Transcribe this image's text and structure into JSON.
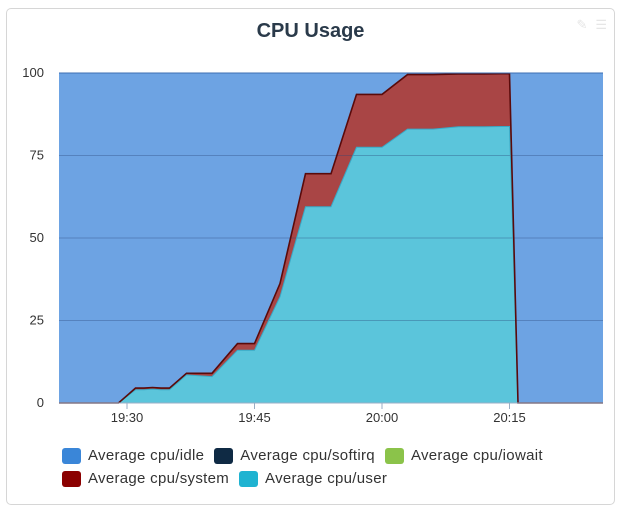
{
  "header": {
    "title": "CPU Usage",
    "icons": [
      "pencil-icon",
      "menu-icon"
    ]
  },
  "chart_data": {
    "type": "area",
    "stacked": true,
    "title": "CPU Usage",
    "xlabel": "",
    "ylabel": "",
    "ylim": [
      0,
      100
    ],
    "xlim": [
      "19:22",
      "20:26"
    ],
    "x_ticks": [
      "19:30",
      "19:45",
      "20:00",
      "20:15"
    ],
    "y_ticks": [
      0,
      25,
      50,
      75,
      100
    ],
    "grid": true,
    "legend_position": "bottom",
    "x": [
      "19:22",
      "19:25",
      "19:26",
      "19:27",
      "19:28",
      "19:29",
      "19:31",
      "19:32",
      "19:33",
      "19:34",
      "19:35",
      "19:37",
      "19:40",
      "19:43",
      "19:45",
      "19:48",
      "19:51",
      "19:54",
      "19:57",
      "20:00",
      "20:03",
      "20:06",
      "20:09",
      "20:12",
      "20:14",
      "20:15",
      "20:16",
      "20:17",
      "20:20",
      "20:23",
      "20:26"
    ],
    "series": [
      {
        "name": "Average cpu/idle",
        "color": "#6da3e3",
        "values": [
          100,
          100,
          100,
          100,
          100,
          100,
          95.5,
          95.5,
          95.3,
          95.5,
          95.5,
          91,
          91,
          82,
          82,
          63.8,
          30.5,
          30.5,
          6.5,
          6.5,
          0.5,
          0.5,
          0.3,
          0.3,
          0.2,
          0.2,
          100,
          100,
          100,
          100,
          100
        ]
      },
      {
        "name": "Average cpu/softirq",
        "color": "#0f2a44",
        "values": [
          0,
          0,
          0,
          0,
          0,
          0,
          0,
          0,
          0,
          0,
          0,
          0,
          0,
          0,
          0,
          0,
          0,
          0,
          0,
          0,
          0,
          0,
          0,
          0,
          0,
          0,
          0,
          0,
          0,
          0,
          0
        ]
      },
      {
        "name": "Average cpu/iowait",
        "color": "#8bc34a",
        "values": [
          0,
          0,
          0,
          0,
          0,
          0,
          0,
          0,
          0,
          0,
          0,
          0,
          0,
          0,
          0,
          0,
          0,
          0,
          0,
          0,
          0,
          0,
          0,
          0,
          0,
          0,
          0,
          0,
          0,
          0,
          0
        ]
      },
      {
        "name": "Average cpu/system",
        "color": "#a94545",
        "values": [
          0,
          0,
          0,
          0,
          0,
          0,
          0.5,
          0.5,
          0.5,
          0.5,
          0.5,
          0.5,
          1,
          2,
          2,
          4,
          10,
          10,
          16,
          16,
          16.5,
          16.5,
          16,
          16,
          16,
          16,
          0,
          0,
          0,
          0,
          0
        ]
      },
      {
        "name": "Average cpu/user",
        "color": "#5bc5db",
        "values": [
          0,
          0,
          0,
          0,
          0,
          0,
          4,
          4,
          4.2,
          4,
          4,
          8.5,
          8,
          16,
          16,
          32.2,
          59.5,
          59.5,
          77.5,
          77.5,
          83,
          83,
          83.7,
          83.7,
          83.8,
          83.8,
          0,
          0,
          0,
          0,
          0
        ]
      }
    ]
  },
  "legend": [
    {
      "label": "Average cpu/idle",
      "color": "#3a86d8"
    },
    {
      "label": "Average cpu/softirq",
      "color": "#0f2a44"
    },
    {
      "label": "Average cpu/iowait",
      "color": "#8bc34a"
    },
    {
      "label": "Average cpu/system",
      "color": "#8b0000"
    },
    {
      "label": "Average cpu/user",
      "color": "#1fb3d1"
    }
  ]
}
